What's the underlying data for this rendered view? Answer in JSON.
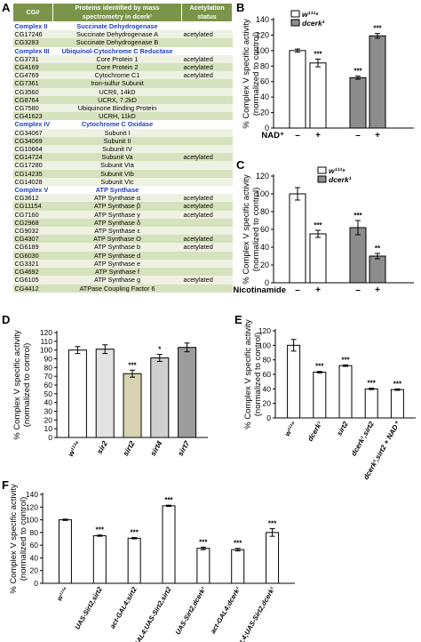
{
  "panel_labels": [
    "A",
    "B",
    "C",
    "D",
    "E",
    "F"
  ],
  "table": {
    "headers": [
      "CG#",
      "Proteins identified by mass spectrometry in dcerk¹",
      "Acetylation status"
    ],
    "rows": [
      {
        "t": "complex",
        "id": "Complex II",
        "name": "Succinate Dehydrogenase",
        "status": ""
      },
      {
        "t": "row",
        "id": "CG17246",
        "name": "Succinate Dehydrogenase A",
        "status": "acetylated"
      },
      {
        "t": "row",
        "id": "CG3283",
        "name": "Succinate Dehydrogenase B",
        "status": ""
      },
      {
        "t": "complex",
        "id": "Complex III",
        "name": "Ubiquinol-Cytochrome C Reductase",
        "status": ""
      },
      {
        "t": "row",
        "id": "CG3731",
        "name": "Core Protein 1",
        "status": "acetylated"
      },
      {
        "t": "row",
        "id": "CG4169",
        "name": "Core Protein 2",
        "status": "acetylated"
      },
      {
        "t": "row",
        "id": "CG4769",
        "name": "Cytochrome C1",
        "status": "acetylated"
      },
      {
        "t": "row",
        "id": "CG7361",
        "name": "Iron-sulfur Subunit",
        "status": ""
      },
      {
        "t": "row",
        "id": "CG3560",
        "name": "UCR6, 14kD",
        "status": ""
      },
      {
        "t": "row",
        "id": "CG8764",
        "name": "UCRX, 7.2kD",
        "status": ""
      },
      {
        "t": "row",
        "id": "CG7580",
        "name": "Ubiquinone Binding Protein",
        "status": ""
      },
      {
        "t": "row",
        "id": "CG41623",
        "name": "UCRH, 11kD",
        "status": ""
      },
      {
        "t": "complex",
        "id": "Complex IV",
        "name": "Cytochrome C Oxidase",
        "status": ""
      },
      {
        "t": "row",
        "id": "CG34067",
        "name": "Subunit I",
        "status": ""
      },
      {
        "t": "row",
        "id": "CG34069",
        "name": "Subunit II",
        "status": ""
      },
      {
        "t": "row",
        "id": "CG10664",
        "name": "Subunit IV",
        "status": ""
      },
      {
        "t": "row",
        "id": "CG14724",
        "name": "Subunit Va",
        "status": "acetylated"
      },
      {
        "t": "row",
        "id": "CG17280",
        "name": "Subunit VIa",
        "status": ""
      },
      {
        "t": "row",
        "id": "CG14235",
        "name": "Subunit VIb",
        "status": ""
      },
      {
        "t": "row",
        "id": "CG14028",
        "name": "Subunit VIc",
        "status": ""
      },
      {
        "t": "complex",
        "id": "Complex V",
        "name": "ATP Synthase",
        "status": ""
      },
      {
        "t": "row",
        "id": "CG3612",
        "name": "ATP Synthase α",
        "status": "acetylated"
      },
      {
        "t": "row",
        "id": "CG11154",
        "name": "ATP Synthase β",
        "status": "acetylated"
      },
      {
        "t": "row",
        "id": "CG7160",
        "name": "ATP Synthase γ",
        "status": "acetylated"
      },
      {
        "t": "row",
        "id": "CG2968",
        "name": "ATP Synthase δ",
        "status": ""
      },
      {
        "t": "row",
        "id": "CG9032",
        "name": "ATP Synthase ε",
        "status": ""
      },
      {
        "t": "row",
        "id": "CG4307",
        "name": "ATP Synthase O",
        "status": "acetylated"
      },
      {
        "t": "row",
        "id": "CG6189",
        "name": "ATP Synthase b",
        "status": "acetylated"
      },
      {
        "t": "row",
        "id": "CG6030",
        "name": "ATP Synthase d",
        "status": ""
      },
      {
        "t": "row",
        "id": "CG3321",
        "name": "ATP Synthase e",
        "status": ""
      },
      {
        "t": "row",
        "id": "CG4692",
        "name": "ATP Synthase f",
        "status": ""
      },
      {
        "t": "row",
        "id": "CG6105",
        "name": "ATP Synthase g",
        "status": "acetylated"
      },
      {
        "t": "row",
        "id": "CG4412",
        "name": "ATPase Coupling Factor 6",
        "status": ""
      }
    ]
  },
  "colors": {
    "white_bar": "#ffffff",
    "gray_bar": "#8c8c8c",
    "light1": "#e3e3e3",
    "light2": "#cfcfcf",
    "tan": "#d7d3b1",
    "mid": "#9c9c9c",
    "table_header": "#7a9449",
    "complex_text": "#1f3fbf"
  },
  "chart_data": [
    {
      "panel": "B",
      "type": "bar",
      "ylabel": "% Complex V specific activity (normalized to control)",
      "ylim": [
        0,
        140
      ],
      "yticks": [
        0,
        20,
        40,
        60,
        80,
        100,
        120,
        140
      ],
      "xlabel": "NAD⁺",
      "categories": [
        "–",
        "+",
        "–",
        "+"
      ],
      "series": [
        {
          "name": "w¹¹¹⁸",
          "color": "#ffffff",
          "values": [
            100,
            84,
            null,
            null
          ],
          "errors": [
            2,
            5,
            null,
            null
          ],
          "sig": [
            "",
            "***",
            "",
            ""
          ]
        },
        {
          "name": "dcerk¹",
          "color": "#8c8c8c",
          "values": [
            null,
            null,
            65,
            119
          ],
          "errors": [
            null,
            null,
            2,
            3
          ],
          "sig": [
            "",
            "",
            "***",
            "***"
          ]
        }
      ],
      "legend": [
        "w¹¹¹⁸",
        "dcerk¹"
      ]
    },
    {
      "panel": "C",
      "type": "bar",
      "ylabel": "% Complex V specific activity (normalized to control)",
      "ylim": [
        0,
        120
      ],
      "yticks": [
        0,
        20,
        40,
        60,
        80,
        100,
        120
      ],
      "xlabel": "Nicotinamide",
      "categories": [
        "–",
        "+",
        "–",
        "+"
      ],
      "series": [
        {
          "name": "w¹¹¹⁸",
          "color": "#ffffff",
          "values": [
            100,
            55,
            null,
            null
          ],
          "errors": [
            7,
            4,
            null,
            null
          ],
          "sig": [
            "",
            "***",
            "",
            ""
          ]
        },
        {
          "name": "dcerk¹",
          "color": "#8c8c8c",
          "values": [
            null,
            null,
            62,
            30
          ],
          "errors": [
            null,
            null,
            8,
            3
          ],
          "sig": [
            "",
            "",
            "***",
            "**"
          ]
        }
      ],
      "legend": [
        "w¹¹¹⁸",
        "dcerk¹"
      ]
    },
    {
      "panel": "D",
      "type": "bar",
      "ylabel": "% Complex V specific activity (normalized to control)",
      "ylim": [
        0,
        120
      ],
      "yticks": [
        0,
        10,
        20,
        30,
        40,
        50,
        60,
        70,
        80,
        90,
        100,
        110,
        120
      ],
      "categories": [
        "w¹¹¹⁸",
        "sir2",
        "sirt2",
        "sirt4",
        "sirt7"
      ],
      "values": [
        100,
        101,
        73,
        91,
        103
      ],
      "errors": [
        4,
        5,
        4,
        4,
        5
      ],
      "sig": [
        "",
        "",
        "***",
        "*",
        ""
      ],
      "colors": [
        "#ffffff",
        "#e3e3e3",
        "#d7d3b1",
        "#cfcfcf",
        "#9c9c9c"
      ]
    },
    {
      "panel": "E",
      "type": "bar",
      "ylabel": "% Complex V specific activity (normalized to control)",
      "ylim": [
        0,
        120
      ],
      "yticks": [
        0,
        20,
        40,
        60,
        80,
        100,
        120
      ],
      "categories": [
        "w¹¹¹⁸",
        "dcerk¹",
        "sirt2",
        "dcerk¹,sirt2",
        "dcerk¹,sirt2 + NAD⁺"
      ],
      "values": [
        100,
        63,
        72,
        40,
        39
      ],
      "errors": [
        8,
        1,
        1,
        1,
        1
      ],
      "sig": [
        "",
        "***",
        "***",
        "***",
        "***"
      ],
      "colors": [
        "#ffffff",
        "#ffffff",
        "#ffffff",
        "#ffffff",
        "#ffffff"
      ]
    },
    {
      "panel": "F",
      "type": "bar",
      "ylabel": "% Complex V specific activity (normalized to control)",
      "ylim": [
        0,
        140
      ],
      "yticks": [
        0,
        20,
        40,
        60,
        80,
        100,
        120,
        140
      ],
      "categories": [
        "w¹¹¹⁸",
        "UAS-Sirt2,sirt2",
        "act-GAL4;sirt2",
        "act-GAL4;UAS-Sirt2,sirt2",
        "UAS-Sirt2,dcerk¹",
        "act-GAL4;dcerk¹",
        "act-GAL4;UAS-Sirt2,dcerk¹"
      ],
      "values": [
        100,
        75,
        71,
        122,
        55,
        53,
        80
      ],
      "errors": [
        1,
        1,
        1,
        1,
        2,
        2,
        6
      ],
      "sig": [
        "",
        "***",
        "***",
        "***",
        "***",
        "***",
        "***"
      ],
      "colors": [
        "#ffffff",
        "#ffffff",
        "#ffffff",
        "#ffffff",
        "#ffffff",
        "#ffffff",
        "#ffffff"
      ]
    }
  ]
}
